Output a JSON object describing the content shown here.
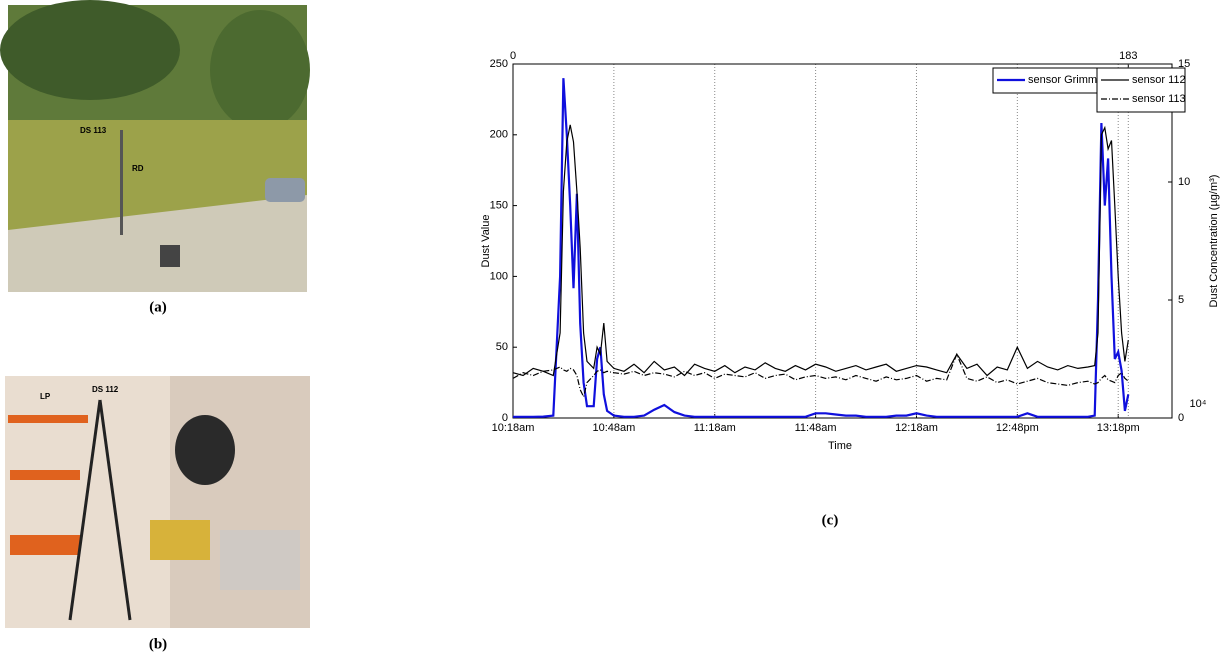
{
  "chart_data": {
    "type": "line",
    "xlabel": "Time",
    "ylabel": "Dust Value",
    "y2label": "Dust Concentration (µg/m³)",
    "y2_multiplier": "10⁴",
    "x": [
      0,
      3,
      6,
      9,
      12,
      14,
      15,
      16,
      17,
      18,
      19,
      20,
      21,
      22,
      24,
      25,
      26,
      27,
      28,
      30,
      33,
      36,
      39,
      42,
      45,
      48,
      51,
      54,
      57,
      60,
      63,
      66,
      69,
      72,
      75,
      78,
      81,
      84,
      87,
      90,
      93,
      96,
      99,
      102,
      105,
      108,
      111,
      114,
      117,
      120,
      123,
      126,
      129,
      132,
      135,
      138,
      141,
      144,
      147,
      150,
      153,
      156,
      159,
      162,
      165,
      168,
      171,
      173,
      174,
      175,
      176,
      177,
      178,
      179,
      180,
      181,
      182,
      183
    ],
    "xlim": [
      0,
      196
    ],
    "xticks": [
      {
        "value": 0,
        "label": "10:18am"
      },
      {
        "value": 30,
        "label": "10:48am"
      },
      {
        "value": 60,
        "label": "11:18am"
      },
      {
        "value": 90,
        "label": "11:48am"
      },
      {
        "value": 120,
        "label": "12:18am"
      },
      {
        "value": 150,
        "label": "12:48pm"
      },
      {
        "value": 180,
        "label": "13:18pm"
      }
    ],
    "x2lim": [
      0,
      196
    ],
    "x2ticks": [
      0,
      183
    ],
    "ylim": [
      0,
      250
    ],
    "yticks": [
      0,
      50,
      100,
      150,
      200,
      250
    ],
    "y2lim": [
      0,
      15
    ],
    "y2ticks": [
      0,
      5,
      10,
      15
    ],
    "grid": "x-dotted",
    "series": [
      {
        "name": "sensor Grimm",
        "color": "#1010dd",
        "axis": "y2",
        "style": "solid",
        "values": [
          0.05,
          0.05,
          0.05,
          0.06,
          0.1,
          6,
          14.4,
          12,
          9,
          5.5,
          9.5,
          4,
          1.5,
          0.5,
          0.5,
          2.5,
          3,
          1,
          0.3,
          0.1,
          0.05,
          0.05,
          0.1,
          0.35,
          0.55,
          0.25,
          0.1,
          0.05,
          0.05,
          0.05,
          0.05,
          0.05,
          0.05,
          0.05,
          0.05,
          0.05,
          0.05,
          0.05,
          0.05,
          0.2,
          0.2,
          0.15,
          0.1,
          0.1,
          0.05,
          0.05,
          0.05,
          0.1,
          0.1,
          0.2,
          0.1,
          0.05,
          0.05,
          0.05,
          0.05,
          0.05,
          0.05,
          0.05,
          0.05,
          0.05,
          0.2,
          0.05,
          0.05,
          0.05,
          0.05,
          0.05,
          0.05,
          0.1,
          5,
          12.5,
          9,
          11,
          6,
          2.5,
          2.8,
          2,
          0.3,
          1
        ]
      },
      {
        "name": "sensor 112",
        "color": "#000000",
        "axis": "y",
        "style": "solid",
        "values": [
          32,
          30,
          35,
          33,
          30,
          60,
          160,
          195,
          207,
          195,
          160,
          120,
          60,
          40,
          35,
          50,
          45,
          67,
          40,
          35,
          33,
          38,
          32,
          40,
          34,
          36,
          30,
          38,
          35,
          33,
          37,
          32,
          36,
          34,
          39,
          35,
          33,
          37,
          34,
          38,
          36,
          33,
          35,
          37,
          34,
          36,
          38,
          33,
          35,
          37,
          36,
          34,
          32,
          45,
          35,
          38,
          30,
          36,
          34,
          50,
          35,
          40,
          36,
          34,
          37,
          35,
          36,
          37,
          60,
          200,
          205,
          190,
          196,
          150,
          100,
          60,
          40,
          55
        ]
      },
      {
        "name": "sensor 113",
        "color": "#000000",
        "axis": "y",
        "style": "dashdot",
        "values": [
          28,
          32,
          30,
          33,
          34,
          36,
          34,
          33,
          35,
          34,
          30,
          20,
          15,
          25,
          30,
          33,
          34,
          32,
          33,
          32,
          31,
          33,
          30,
          32,
          31,
          29,
          33,
          30,
          32,
          28,
          31,
          30,
          29,
          32,
          28,
          30,
          31,
          27,
          29,
          30,
          28,
          29,
          27,
          30,
          28,
          26,
          29,
          27,
          28,
          30,
          26,
          28,
          27,
          45,
          28,
          26,
          29,
          25,
          27,
          24,
          26,
          28,
          25,
          24,
          23,
          25,
          26,
          24,
          25,
          28,
          30,
          27,
          26,
          25,
          30,
          32,
          28,
          26
        ]
      }
    ]
  },
  "captions": {
    "a": "(a)",
    "b": "(b)",
    "c": "(c)"
  },
  "photos": {
    "a_labels": [
      "DS 113",
      "RD"
    ],
    "b_labels": [
      "LP",
      "DS 112"
    ]
  }
}
